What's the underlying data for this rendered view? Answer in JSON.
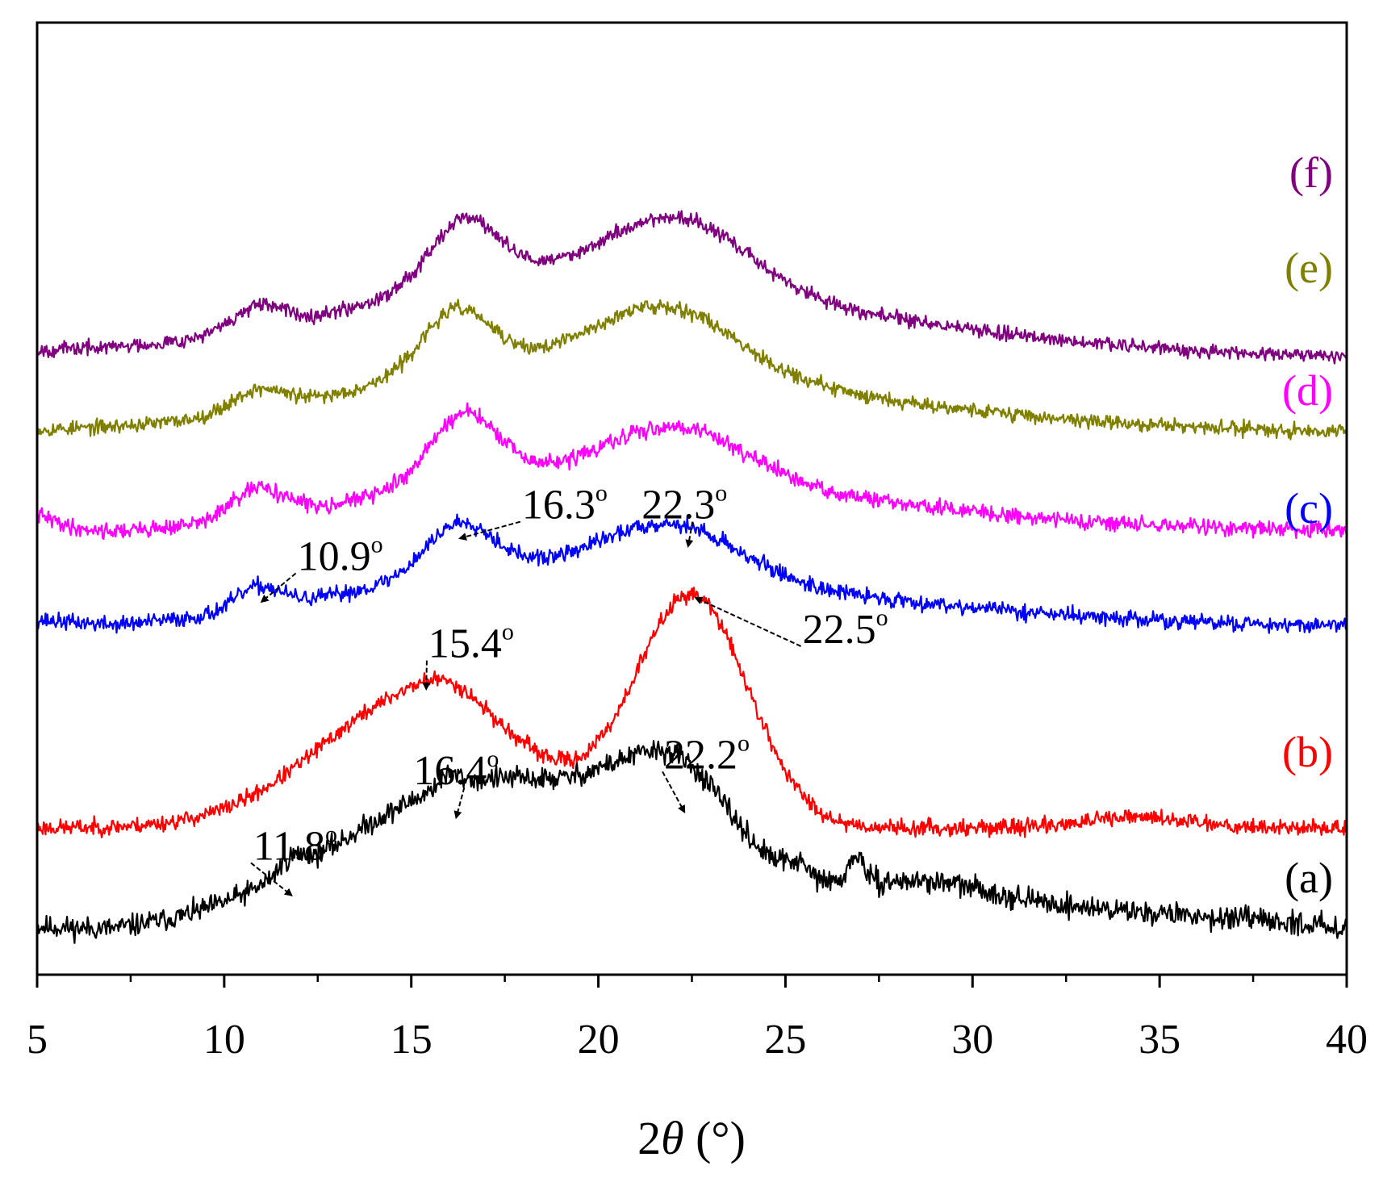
{
  "chart_data": {
    "type": "line",
    "title": "",
    "xlabel": "2θ (°)",
    "xlabel_parts": {
      "number": "2",
      "symbol": "θ",
      "unit": " (°)"
    },
    "ylabel": "",
    "xlim": [
      5,
      40
    ],
    "xticks": [
      5,
      10,
      15,
      20,
      25,
      30,
      35,
      40
    ],
    "xtick_labels": [
      "5",
      "10",
      "15",
      "20",
      "25",
      "30",
      "35",
      "40"
    ],
    "y_units": "intensity (a.u., stacked, offset units)",
    "ylim": [
      0,
      120
    ],
    "grid": false,
    "legend": "labels at right end of each curve",
    "series": [
      {
        "name": "(a)",
        "color": "#000000",
        "seed": 11,
        "noise": 1.4,
        "baseline": 6.0,
        "slope_points": [
          [
            5,
            0
          ],
          [
            7,
            -0.5
          ],
          [
            9,
            0.3
          ],
          [
            11,
            1.5
          ],
          [
            20,
            7
          ],
          [
            30,
            3.5
          ],
          [
            40,
            0
          ]
        ],
        "peaks": [
          {
            "center": 16.8,
            "height": 13.5,
            "width": 3.6
          },
          {
            "center": 11.8,
            "height": 1.8,
            "width": 0.35
          },
          {
            "center": 22.3,
            "height": 9.5,
            "width": 1.3
          },
          {
            "center": 20.8,
            "height": 2.5,
            "width": 1.2
          },
          {
            "center": 25.3,
            "height": 1.6,
            "width": 0.3
          },
          {
            "center": 26.9,
            "height": 3.5,
            "width": 0.2
          },
          {
            "center": 29.0,
            "height": 1.8,
            "width": 1.5
          },
          {
            "center": 16.0,
            "height": 1.5,
            "width": 0.3
          }
        ],
        "label": "(a)"
      },
      {
        "name": "(b)",
        "color": "#ff0000",
        "seed": 23,
        "noise": 1.0,
        "baseline": 18.5,
        "slope_points": [
          [
            5,
            0
          ],
          [
            40,
            0
          ]
        ],
        "peaks": [
          {
            "center": 15.3,
            "height": 17.0,
            "width": 2.7
          },
          {
            "center": 22.5,
            "height": 29.0,
            "width": 1.5
          },
          {
            "center": 16.0,
            "height": 2.0,
            "width": 0.8
          },
          {
            "center": 34.5,
            "height": 1.3,
            "width": 1.5
          }
        ],
        "label": "(b)"
      },
      {
        "name": "(c)",
        "color": "#0000ff",
        "seed": 37,
        "noise": 1.0,
        "baseline": 44.0,
        "slope_points": [
          [
            5,
            0.5
          ],
          [
            7,
            -0.5
          ],
          [
            40,
            0
          ]
        ],
        "peaks": [
          {
            "center": 18.0,
            "height": 7.0,
            "width": 5.0
          },
          {
            "center": 16.3,
            "height": 6.5,
            "width": 0.9
          },
          {
            "center": 22.0,
            "height": 6.5,
            "width": 1.8
          },
          {
            "center": 10.9,
            "height": 2.8,
            "width": 0.6
          },
          {
            "center": 27.0,
            "height": 2.5,
            "width": 5.0
          }
        ],
        "label": "(c)"
      },
      {
        "name": "(d)",
        "color": "#ff00ff",
        "seed": 41,
        "noise": 1.0,
        "baseline": 56.0,
        "slope_points": [
          [
            5,
            1.8
          ],
          [
            6,
            0
          ],
          [
            7,
            -0.6
          ],
          [
            40,
            0
          ]
        ],
        "peaks": [
          {
            "center": 18.5,
            "height": 7.0,
            "width": 5.0
          },
          {
            "center": 16.4,
            "height": 8.5,
            "width": 0.9
          },
          {
            "center": 22.2,
            "height": 6.5,
            "width": 1.8
          },
          {
            "center": 10.9,
            "height": 3.6,
            "width": 0.7
          },
          {
            "center": 27.0,
            "height": 2.5,
            "width": 5.0
          }
        ],
        "label": "(d)"
      },
      {
        "name": "(e)",
        "color": "#808000",
        "seed": 53,
        "noise": 0.9,
        "baseline": 68.5,
        "slope_points": [
          [
            5,
            0
          ],
          [
            40,
            0
          ]
        ],
        "peaks": [
          {
            "center": 18.5,
            "height": 8.5,
            "width": 5.0
          },
          {
            "center": 16.2,
            "height": 7.5,
            "width": 0.9
          },
          {
            "center": 21.9,
            "height": 7.5,
            "width": 1.8
          },
          {
            "center": 10.9,
            "height": 2.6,
            "width": 0.7
          },
          {
            "center": 27.0,
            "height": 2.5,
            "width": 5.0
          }
        ],
        "label": "(e)"
      },
      {
        "name": "(f)",
        "color": "#800080",
        "seed": 67,
        "noise": 0.9,
        "baseline": 78.0,
        "slope_points": [
          [
            5,
            0.5
          ],
          [
            40,
            0
          ]
        ],
        "peaks": [
          {
            "center": 18.5,
            "height": 9.5,
            "width": 5.0
          },
          {
            "center": 16.4,
            "height": 8.0,
            "width": 0.9
          },
          {
            "center": 22.2,
            "height": 8.0,
            "width": 1.8
          },
          {
            "center": 10.9,
            "height": 2.8,
            "width": 0.7
          },
          {
            "center": 27.0,
            "height": 3.0,
            "width": 5.0
          }
        ],
        "label": "(f)"
      }
    ],
    "annotations": [
      {
        "text": "11.8",
        "sup": "o",
        "series": "(a)",
        "peak_x": 11.8,
        "peak_y": 10.0,
        "label_x": 11.9,
        "label_y": 14.5,
        "anchor": "middle"
      },
      {
        "text": "16.4",
        "sup": "o",
        "series": "(a)",
        "peak_x": 16.2,
        "peak_y": 19.8,
        "label_x": 16.2,
        "label_y": 24.0,
        "anchor": "middle"
      },
      {
        "text": "22.2",
        "sup": "o",
        "series": "(a)",
        "peak_x": 22.3,
        "peak_y": 20.5,
        "label_x": 22.9,
        "label_y": 26.0,
        "anchor": "middle"
      },
      {
        "text": "15.4",
        "sup": "o",
        "series": "(b)",
        "peak_x": 15.4,
        "peak_y": 36.0,
        "label_x": 16.6,
        "label_y": 40.0,
        "anchor": "middle"
      },
      {
        "text": "22.5",
        "sup": "o",
        "series": "(b)",
        "peak_x": 22.6,
        "peak_y": 47.5,
        "label_x": 26.6,
        "label_y": 41.8,
        "anchor": "middle"
      },
      {
        "text": "10.9",
        "sup": "o",
        "series": "(c)",
        "peak_x": 11.0,
        "peak_y": 47.0,
        "label_x": 13.1,
        "label_y": 51.0,
        "anchor": "middle"
      },
      {
        "text": "16.3",
        "sup": "o",
        "series": "(c)",
        "peak_x": 16.3,
        "peak_y": 55.0,
        "label_x": 19.1,
        "label_y": 57.5,
        "anchor": "middle"
      },
      {
        "text": "22.3",
        "sup": "o",
        "series": "(c)",
        "peak_x": 22.4,
        "peak_y": 54.0,
        "label_x": 22.3,
        "label_y": 57.5,
        "anchor": "middle"
      }
    ],
    "annotation_arrow_color": "#000000"
  }
}
